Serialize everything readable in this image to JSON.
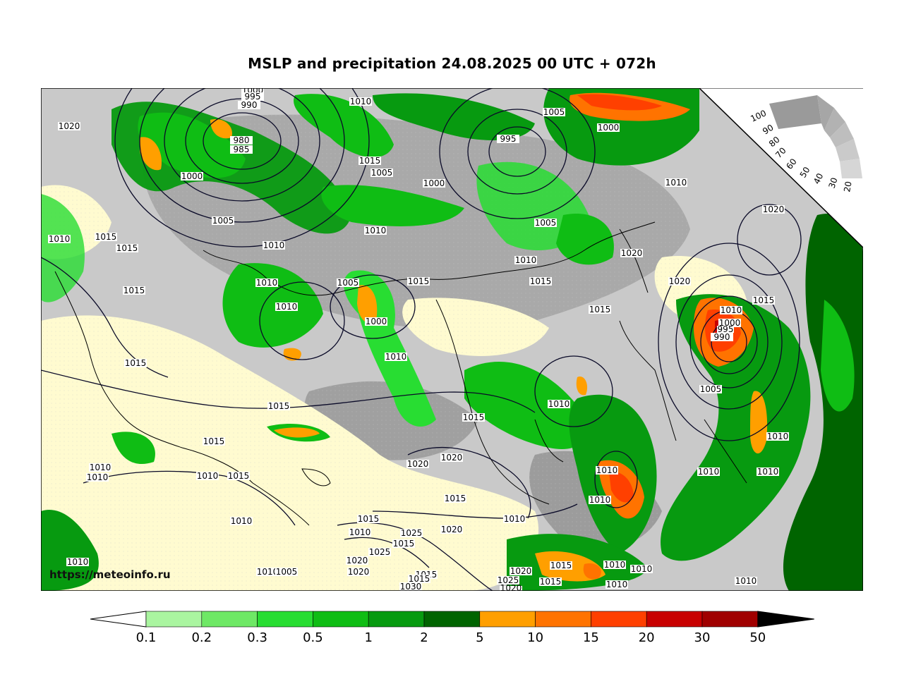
{
  "title": "MSLP and precipitation 24.08.2025 00 UTC + 072h",
  "watermark": "https://meteoinfo.ru",
  "colorbar": {
    "labels": [
      "0.1",
      "0.2",
      "0.3",
      "0.5",
      "1",
      "2",
      "5",
      "10",
      "15",
      "20",
      "30",
      "50"
    ],
    "colors": [
      "#aaf5a0",
      "#6ee865",
      "#28dd32",
      "#0fbd14",
      "#079a10",
      "#006400",
      "#ff9f00",
      "#ff7300",
      "#ff4000",
      "#c80000",
      "#a00000",
      "#000000"
    ],
    "under_color": "#ffffff"
  },
  "cloud_legend": {
    "labels": [
      "100",
      "90",
      "80",
      "70",
      "60",
      "50",
      "40",
      "30",
      "20"
    ]
  },
  "isobar_labels": [
    {
      "t": "1000"
    },
    {
      "t": "995"
    },
    {
      "t": "990"
    },
    {
      "t": "980"
    },
    {
      "t": "985"
    },
    {
      "t": "1020"
    },
    {
      "t": "1010"
    },
    {
      "t": "1005"
    },
    {
      "t": "995"
    },
    {
      "t": "1000"
    },
    {
      "t": "1000"
    },
    {
      "t": "1015"
    },
    {
      "t": "1005"
    },
    {
      "t": "1000"
    },
    {
      "t": "1010"
    },
    {
      "t": "1005"
    },
    {
      "t": "1010"
    },
    {
      "t": "1020"
    },
    {
      "t": "1010"
    },
    {
      "t": "1015"
    },
    {
      "t": "1015"
    },
    {
      "t": "1010"
    },
    {
      "t": "1010"
    },
    {
      "t": "1005"
    },
    {
      "t": "1010"
    },
    {
      "t": "1005"
    },
    {
      "t": "1015"
    },
    {
      "t": "1020"
    },
    {
      "t": "1015"
    },
    {
      "t": "1020"
    },
    {
      "t": "1000"
    },
    {
      "t": "1015"
    },
    {
      "t": "1015"
    },
    {
      "t": "1010"
    },
    {
      "t": "1015"
    },
    {
      "t": "1010"
    },
    {
      "t": "1015"
    },
    {
      "t": "1015"
    },
    {
      "t": "1020"
    },
    {
      "t": "1020"
    },
    {
      "t": "1015"
    },
    {
      "t": "1010"
    },
    {
      "t": "1000"
    },
    {
      "t": "995"
    },
    {
      "t": "990"
    },
    {
      "t": "1005"
    },
    {
      "t": "1010"
    },
    {
      "t": "1010"
    },
    {
      "t": "1010"
    },
    {
      "t": "1010"
    },
    {
      "t": "1015"
    },
    {
      "t": "1010"
    },
    {
      "t": "1010"
    },
    {
      "t": "1010"
    },
    {
      "t": "1015"
    },
    {
      "t": "1010"
    },
    {
      "t": "1020"
    },
    {
      "t": "1015"
    },
    {
      "t": "1015"
    },
    {
      "t": "1010"
    },
    {
      "t": "1010"
    },
    {
      "t": "1025"
    },
    {
      "t": "1015"
    },
    {
      "t": "1025"
    },
    {
      "t": "1020"
    },
    {
      "t": "1015"
    },
    {
      "t": "1020"
    },
    {
      "t": "1015"
    },
    {
      "t": "1020"
    },
    {
      "t": "1015"
    },
    {
      "t": "1010"
    },
    {
      "t": "1010"
    },
    {
      "t": "1010"
    },
    {
      "t": "1010"
    },
    {
      "t": "1005"
    },
    {
      "t": "1010"
    },
    {
      "t": "1030"
    },
    {
      "t": "1025"
    },
    {
      "t": "1020"
    },
    {
      "t": "1010"
    },
    {
      "t": "1010"
    },
    {
      "t": "1010"
    },
    {
      "t": "1015"
    }
  ]
}
